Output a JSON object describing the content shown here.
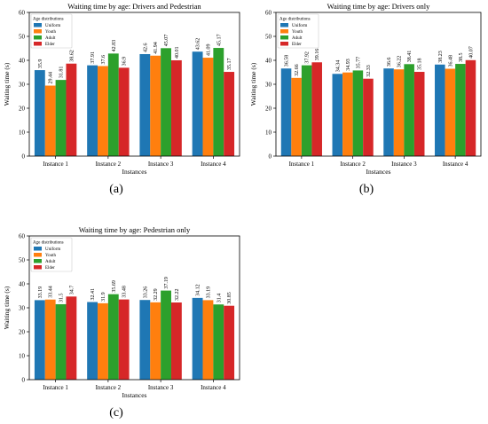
{
  "colors": {
    "Uniform": "#1f77b4",
    "Youth": "#ff7f0e",
    "Adult": "#2ca02c",
    "Elder": "#d62728"
  },
  "chart_data": [
    {
      "type": "bar",
      "title": "Waiting time by age: Drivers and Pedestrian",
      "xlabel": "Instances",
      "ylabel": "Waiting time (s)",
      "ylim": [
        0,
        60
      ],
      "yticks": [
        0,
        10,
        20,
        30,
        40,
        50,
        60
      ],
      "legend_title": "Age distributions",
      "legend_position": "top-left",
      "categories": [
        "Instance 1",
        "Instance 2",
        "Instance 3",
        "Instance 4"
      ],
      "series": [
        {
          "name": "Uniform",
          "values": [
            35.9,
            37.91,
            42.6,
            43.62
          ]
        },
        {
          "name": "Youth",
          "values": [
            29.44,
            37.6,
            41.94,
            41.09
          ]
        },
        {
          "name": "Adult",
          "values": [
            31.81,
            42.83,
            45.07,
            45.17
          ]
        },
        {
          "name": "Elder",
          "values": [
            38.62,
            36.9,
            40.01,
            35.17
          ]
        }
      ],
      "caption": "(a)"
    },
    {
      "type": "bar",
      "title": "Waiting time by age: Drivers only",
      "xlabel": "Instances",
      "ylabel": "Waiting time (s)",
      "ylim": [
        0,
        60
      ],
      "yticks": [
        0,
        10,
        20,
        30,
        40,
        50,
        60
      ],
      "legend_title": "Age distributions",
      "legend_position": "top-left",
      "categories": [
        "Instance 1",
        "Instance 2",
        "Instance 3",
        "Instance 4"
      ],
      "series": [
        {
          "name": "Uniform",
          "values": [
            36.58,
            34.34,
            36.6,
            38.23
          ]
        },
        {
          "name": "Youth",
          "values": [
            32.66,
            34.93,
            36.22,
            36.48
          ]
        },
        {
          "name": "Adult",
          "values": [
            37.92,
            35.77,
            38.41,
            38.5
          ]
        },
        {
          "name": "Elder",
          "values": [
            39.16,
            32.33,
            35.18,
            40.07
          ]
        }
      ],
      "caption": "(b)"
    },
    {
      "type": "bar",
      "title": "Waiting time by age: Pedestrian only",
      "xlabel": "Instances",
      "ylabel": "Waiting time (s)",
      "ylim": [
        0,
        60
      ],
      "yticks": [
        0,
        10,
        20,
        30,
        40,
        50,
        60
      ],
      "legend_title": "Age distributions",
      "legend_position": "top-left",
      "categories": [
        "Instance 1",
        "Instance 2",
        "Instance 3",
        "Instance 4"
      ],
      "series": [
        {
          "name": "Uniform",
          "values": [
            33.19,
            32.41,
            33.26,
            34.12
          ]
        },
        {
          "name": "Youth",
          "values": [
            33.44,
            31.9,
            32.29,
            33.19
          ]
        },
        {
          "name": "Adult",
          "values": [
            31.5,
            35.69,
            37.19,
            31.4
          ]
        },
        {
          "name": "Elder",
          "values": [
            34.7,
            33.48,
            32.22,
            30.85
          ]
        }
      ],
      "caption": "(c)"
    }
  ]
}
